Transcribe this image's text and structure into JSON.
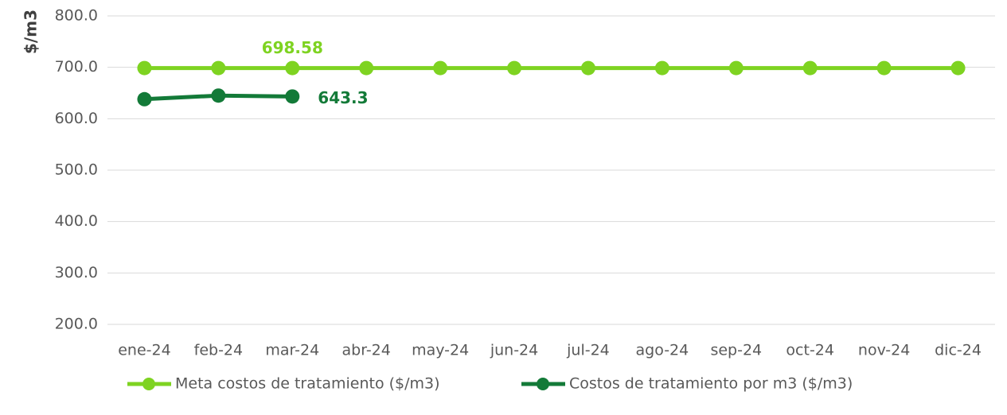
{
  "chart_data": {
    "type": "line",
    "y_label": "$/m3",
    "categories": [
      "ene-24",
      "feb-24",
      "mar-24",
      "abr-24",
      "may-24",
      "jun-24",
      "jul-24",
      "ago-24",
      "sep-24",
      "oct-24",
      "nov-24",
      "dic-24"
    ],
    "series": [
      {
        "name": "Meta costos de tratamiento ($/m3)",
        "color": "#7ed321",
        "values": [
          698.58,
          698.58,
          698.58,
          698.58,
          698.58,
          698.58,
          698.58,
          698.58,
          698.58,
          698.58,
          698.58,
          698.58
        ]
      },
      {
        "name": "Costos de tratamiento por m3 ($/m3)",
        "color": "#137a38",
        "values": [
          638,
          645,
          643.3,
          null,
          null,
          null,
          null,
          null,
          null,
          null,
          null,
          null
        ]
      }
    ],
    "ylim": [
      200,
      800
    ],
    "yticks": [
      {
        "value": 200,
        "label": "200.0"
      },
      {
        "value": 300,
        "label": "300.0"
      },
      {
        "value": 400,
        "label": "400.0"
      },
      {
        "value": 500,
        "label": "500.0"
      },
      {
        "value": 600,
        "label": "600.0"
      },
      {
        "value": 700,
        "label": "700.0"
      },
      {
        "value": 800,
        "label": "800.0"
      }
    ],
    "grid": true,
    "legend": "bottom"
  }
}
